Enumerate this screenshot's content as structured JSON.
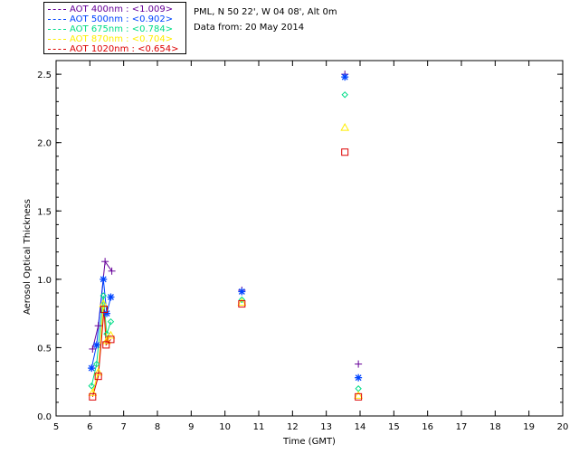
{
  "header": {
    "site": "PML, N 50 22', W 04 08', Alt 0m",
    "date": "Data from: 20 May 2014"
  },
  "legend": [
    {
      "label": "AOT  400nm : <1.009>",
      "color": "#660099"
    },
    {
      "label": "AOT  500nm : <0.902>",
      "color": "#0044ff"
    },
    {
      "label": "AOT  675nm : <0.784>",
      "color": "#00dd88"
    },
    {
      "label": "AOT  870nm : <0.704>",
      "color": "#ffee00"
    },
    {
      "label": "AOT 1020nm : <0.654>",
      "color": "#dd0000"
    }
  ],
  "chart_data": {
    "type": "scatter",
    "title": "",
    "xlabel": "Time (GMT)",
    "ylabel": "Aerosol Optical Thickness",
    "xlim": [
      5,
      20
    ],
    "ylim": [
      0,
      2.6
    ],
    "xticks": [
      "5",
      "6",
      "7",
      "8",
      "9",
      "10",
      "11",
      "12",
      "13",
      "14",
      "15",
      "16",
      "17",
      "18",
      "19",
      "20"
    ],
    "yticks": [
      "0.0",
      "0.5",
      "1.0",
      "1.5",
      "2.0",
      "2.5"
    ],
    "grid": false,
    "legend_position": "top-left",
    "series": [
      {
        "name": "AOT  400nm",
        "color": "#660099",
        "marker": "plus",
        "x": [
          6.08,
          6.25,
          6.45,
          6.65,
          10.5,
          13.55,
          13.95
        ],
        "y": [
          0.49,
          0.66,
          1.13,
          1.06,
          0.92,
          2.5,
          0.38
        ]
      },
      {
        "name": "AOT  500nm",
        "color": "#0044ff",
        "marker": "star",
        "x": [
          6.05,
          6.2,
          6.4,
          6.5,
          6.62,
          10.5,
          13.55,
          13.95
        ],
        "y": [
          0.35,
          0.52,
          1.0,
          0.75,
          0.87,
          0.91,
          2.48,
          0.28
        ]
      },
      {
        "name": "AOT  675nm",
        "color": "#00dd88",
        "marker": "diamond",
        "x": [
          6.05,
          6.2,
          6.4,
          6.5,
          6.62,
          10.5,
          13.55,
          13.95
        ],
        "y": [
          0.22,
          0.38,
          0.88,
          0.6,
          0.69,
          0.85,
          2.35,
          0.2
        ]
      },
      {
        "name": "AOT  870nm",
        "color": "#ffee00",
        "marker": "triangle",
        "x": [
          6.08,
          6.25,
          6.4,
          6.5,
          6.62,
          10.5,
          13.55,
          13.95
        ],
        "y": [
          0.17,
          0.32,
          0.82,
          0.55,
          0.59,
          0.83,
          2.11,
          0.15
        ]
      },
      {
        "name": "AOT 1020nm",
        "color": "#dd0000",
        "marker": "square",
        "x": [
          6.08,
          6.25,
          6.42,
          6.48,
          6.62,
          10.5,
          13.55,
          13.95
        ],
        "y": [
          0.14,
          0.29,
          0.78,
          0.52,
          0.56,
          0.82,
          1.93,
          0.14
        ]
      }
    ],
    "connected_segments": [
      {
        "series": 0,
        "x_max": 7
      },
      {
        "series": 1,
        "x_max": 7
      },
      {
        "series": 2,
        "x_max": 7
      },
      {
        "series": 3,
        "x_max": 7
      },
      {
        "series": 4,
        "x_max": 7
      }
    ]
  }
}
